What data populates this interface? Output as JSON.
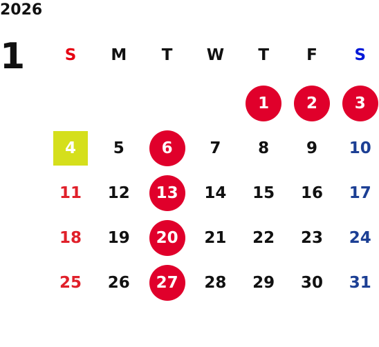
{
  "year": "2026",
  "month": "1",
  "weekdays": [
    "S",
    "M",
    "T",
    "W",
    "T",
    "F",
    "S"
  ],
  "weeks": [
    [
      null,
      null,
      null,
      null,
      {
        "day": "1",
        "circle": true
      },
      {
        "day": "2",
        "circle": true
      },
      {
        "day": "3",
        "circle": true
      }
    ],
    [
      {
        "day": "4",
        "today": true
      },
      {
        "day": "5"
      },
      {
        "day": "6",
        "circle": true
      },
      {
        "day": "7"
      },
      {
        "day": "8"
      },
      {
        "day": "9"
      },
      {
        "day": "10"
      }
    ],
    [
      {
        "day": "11"
      },
      {
        "day": "12"
      },
      {
        "day": "13",
        "circle": true
      },
      {
        "day": "14"
      },
      {
        "day": "15"
      },
      {
        "day": "16"
      },
      {
        "day": "17"
      }
    ],
    [
      {
        "day": "18"
      },
      {
        "day": "19"
      },
      {
        "day": "20",
        "circle": true
      },
      {
        "day": "21"
      },
      {
        "day": "22"
      },
      {
        "day": "23"
      },
      {
        "day": "24"
      }
    ],
    [
      {
        "day": "25"
      },
      {
        "day": "26"
      },
      {
        "day": "27",
        "circle": true
      },
      {
        "day": "28"
      },
      {
        "day": "29"
      },
      {
        "day": "30"
      },
      {
        "day": "31"
      }
    ]
  ]
}
